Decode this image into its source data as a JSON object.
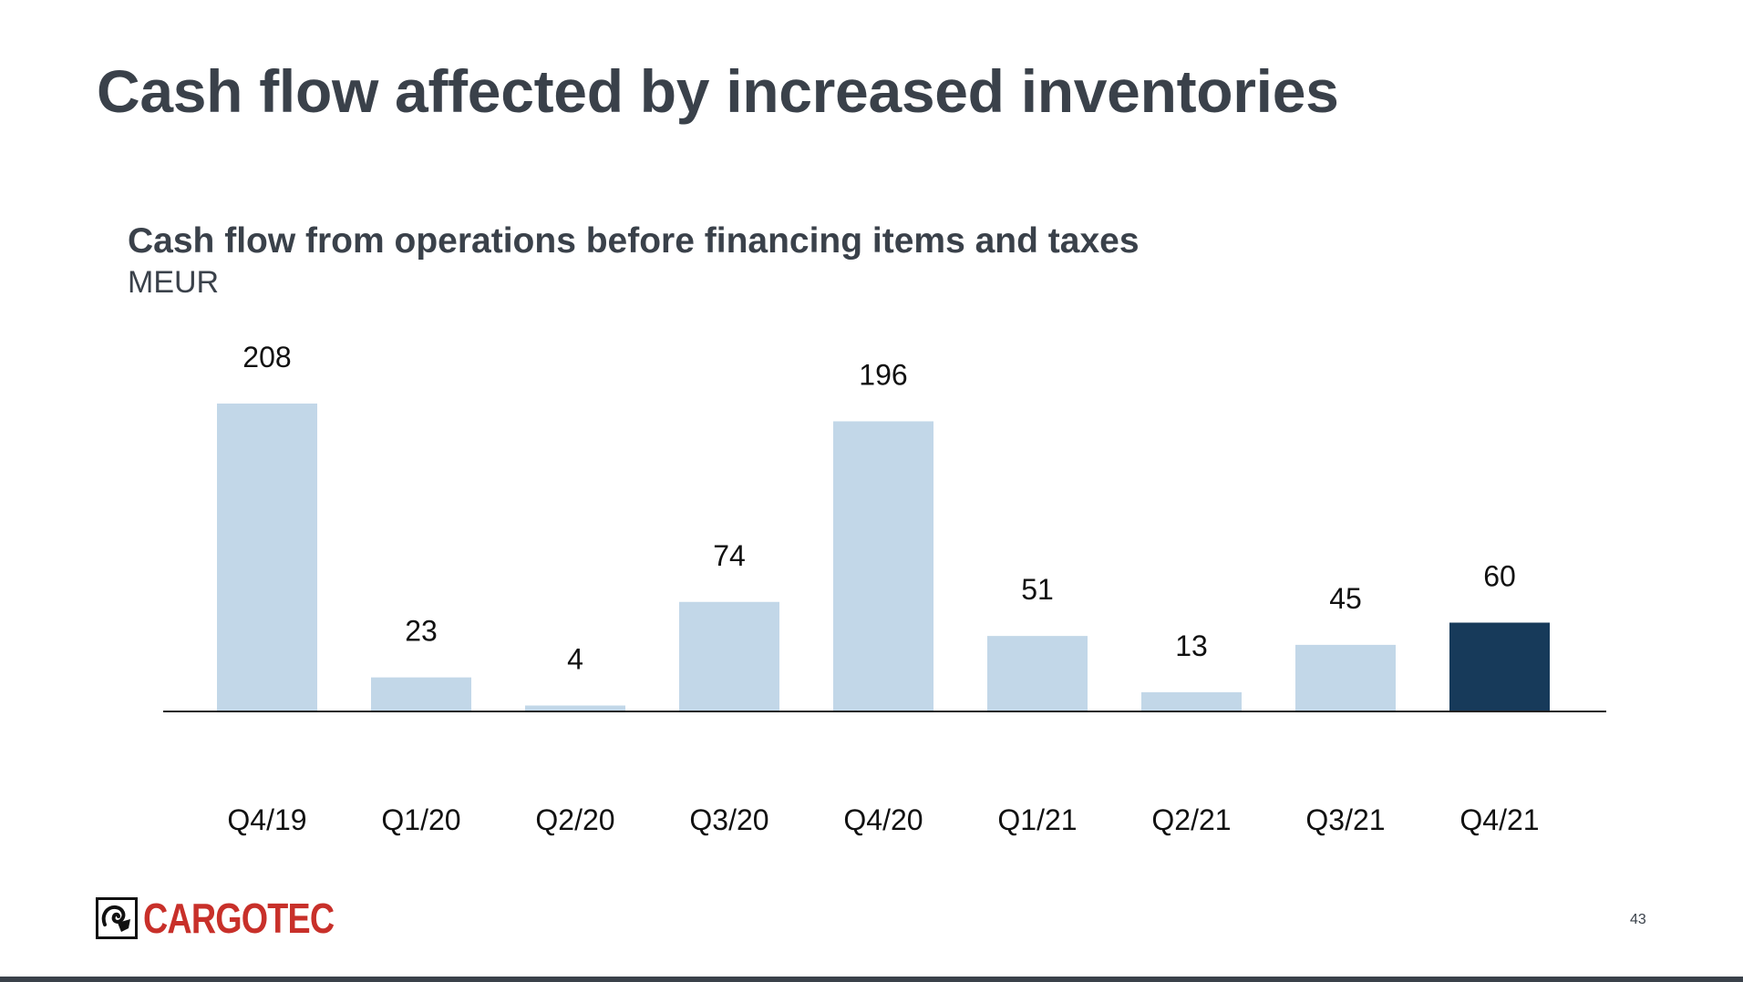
{
  "slide": {
    "title": "Cash flow affected by increased inventories",
    "page_number": "43"
  },
  "logo": {
    "text": "CARGOTEC",
    "mark": "ram-head-icon",
    "color": "#c8302a"
  },
  "colors": {
    "bar": "#c2d7e8",
    "highlight_bar": "#173a5a",
    "text": "#3a414a"
  },
  "chart_data": {
    "type": "bar",
    "title": "Cash flow from operations before financing items and taxes",
    "subtitle": "MEUR",
    "categories": [
      "Q4/19",
      "Q1/20",
      "Q2/20",
      "Q3/20",
      "Q4/20",
      "Q1/21",
      "Q2/21",
      "Q3/21",
      "Q4/21"
    ],
    "values": [
      208,
      23,
      4,
      74,
      196,
      51,
      13,
      45,
      60
    ],
    "highlight_index": 8,
    "data_labels": true,
    "ylim": [
      0,
      208
    ],
    "grid": false,
    "legend": "none"
  }
}
